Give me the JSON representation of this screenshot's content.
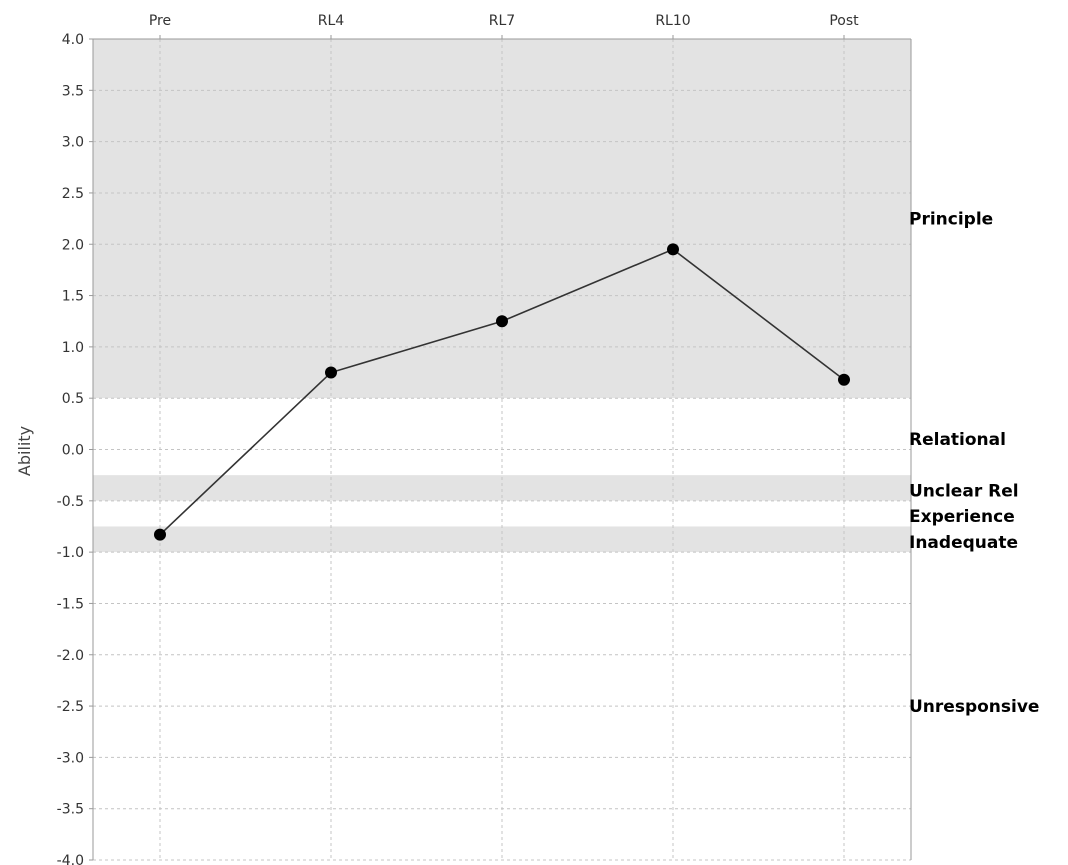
{
  "chart_data": {
    "type": "line",
    "title": "",
    "xlabel": "",
    "ylabel": "Ability",
    "categories": [
      "Pre",
      "RL4",
      "RL7",
      "RL10",
      "Post"
    ],
    "series": [
      {
        "values": [
          -0.83,
          0.75,
          1.25,
          1.95,
          0.68
        ]
      }
    ],
    "ylim": [
      -4.0,
      4.0
    ],
    "yticks": [
      "4.0",
      "3.5",
      "3.0",
      "2.5",
      "2.0",
      "1.5",
      "1.0",
      "0.5",
      "0.0",
      "-0.5",
      "-1.0",
      "-1.5",
      "-2.0",
      "-2.5",
      "-3.0",
      "-3.5",
      "-4.0"
    ],
    "x_axis_position": "top",
    "grid": true,
    "bands": [
      {
        "label": "Principle",
        "from": 0.5,
        "to": 4.0,
        "shaded": true
      },
      {
        "label": "Relational",
        "from": -0.25,
        "to": 0.5,
        "shaded": false
      },
      {
        "label": "Unclear Rel",
        "from": -0.5,
        "to": -0.25,
        "shaded": true
      },
      {
        "label": "Experience",
        "from": -0.75,
        "to": -0.5,
        "shaded": false
      },
      {
        "label": "Inadequate",
        "from": -1.0,
        "to": -0.75,
        "shaded": true
      },
      {
        "label": "Unresponsive",
        "from": -4.0,
        "to": -1.0,
        "shaded": false
      }
    ],
    "colors": {
      "band_shaded": "#e3e3e3",
      "band_plain": "#ffffff",
      "line": "#333333",
      "point": "#000000"
    }
  }
}
